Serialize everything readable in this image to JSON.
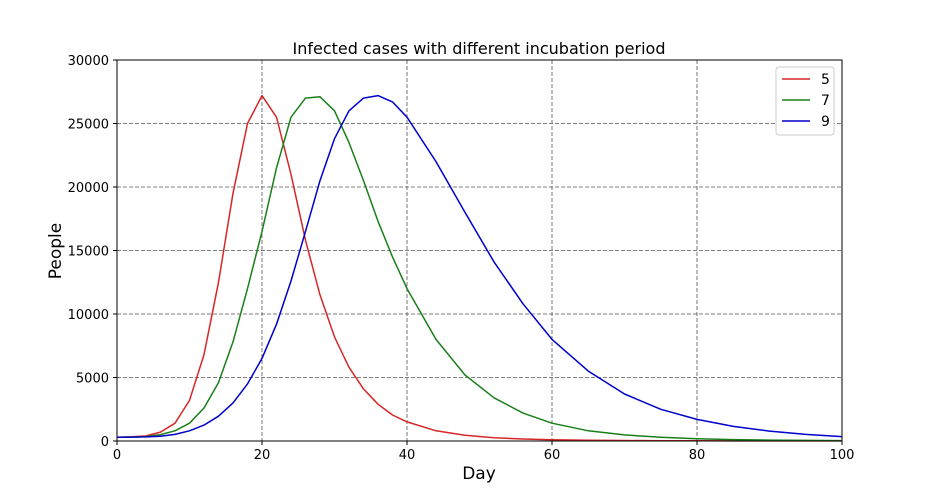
{
  "chart_data": {
    "type": "line",
    "title": "Infected cases with different incubation period",
    "xlabel": "Day",
    "ylabel": "People",
    "xlim": [
      0,
      100
    ],
    "ylim": [
      0,
      30000
    ],
    "x_ticks": [
      "0",
      "20",
      "40",
      "60",
      "80",
      "100"
    ],
    "y_ticks": [
      "0",
      "5000",
      "10000",
      "15000",
      "20000",
      "25000",
      "30000"
    ],
    "grid": true,
    "legend_position": "top-right",
    "x": [
      0,
      2,
      4,
      6,
      8,
      10,
      12,
      14,
      16,
      18,
      20,
      22,
      24,
      26,
      28,
      30,
      32,
      34,
      36,
      38,
      40,
      44,
      48,
      52,
      56,
      60,
      65,
      70,
      75,
      80,
      85,
      90,
      95,
      100
    ],
    "series": [
      {
        "name": "5",
        "color": "#d62728",
        "values": [
          300,
          320,
          400,
          700,
          1400,
          3200,
          6800,
          12500,
          19500,
          25000,
          27200,
          25500,
          21000,
          15800,
          11500,
          8200,
          5800,
          4100,
          2900,
          2050,
          1500,
          800,
          450,
          260,
          160,
          100,
          60,
          40,
          25,
          15,
          10,
          8,
          5,
          4
        ]
      },
      {
        "name": "7",
        "color": "#1a7f1a",
        "values": [
          300,
          310,
          350,
          500,
          800,
          1400,
          2600,
          4600,
          7800,
          12000,
          16500,
          21500,
          25500,
          27000,
          27100,
          26000,
          23500,
          20500,
          17300,
          14500,
          12000,
          8000,
          5200,
          3400,
          2200,
          1400,
          800,
          480,
          300,
          180,
          110,
          70,
          45,
          30
        ]
      },
      {
        "name": "9",
        "color": "#0000cc",
        "values": [
          300,
          305,
          320,
          380,
          520,
          800,
          1250,
          1950,
          3000,
          4500,
          6500,
          9200,
          12600,
          16500,
          20500,
          23800,
          26000,
          27000,
          27200,
          26700,
          25500,
          22000,
          18000,
          14100,
          10800,
          8000,
          5500,
          3700,
          2500,
          1700,
          1150,
          780,
          520,
          350
        ]
      }
    ]
  }
}
